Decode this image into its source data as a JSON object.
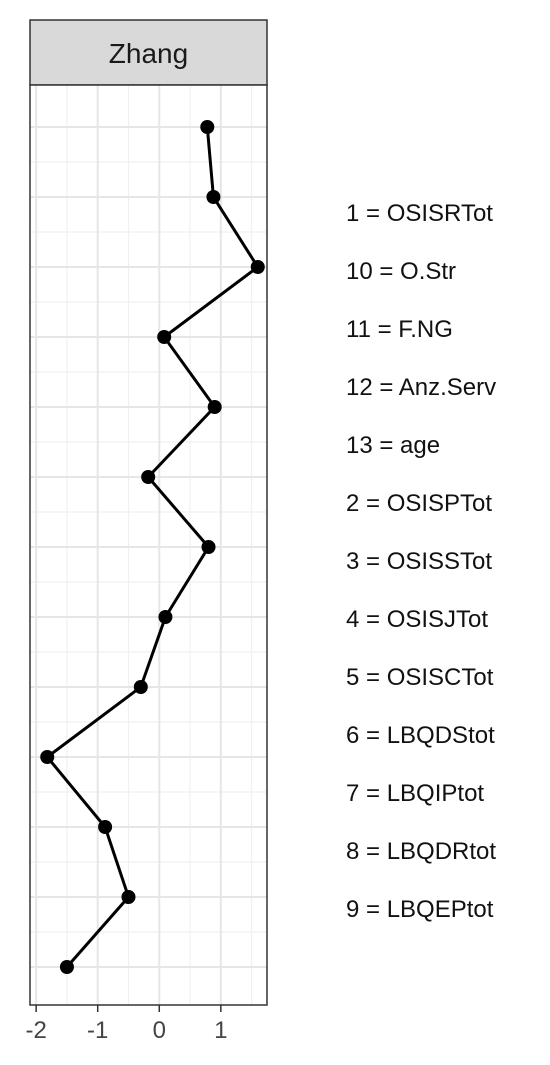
{
  "chart_data": {
    "type": "line",
    "facet_title": "Zhang",
    "x_ticks": [
      -2,
      -1,
      0,
      1
    ],
    "xlim": [
      -2.1,
      1.75
    ],
    "grid": true,
    "y_categories": [
      "1",
      "2",
      "3",
      "4",
      "5",
      "6",
      "7",
      "8",
      "9",
      "10",
      "11",
      "12",
      "13"
    ],
    "series": [
      {
        "points": [
          {
            "y": "1",
            "x": 0.78
          },
          {
            "y": "2",
            "x": 0.88
          },
          {
            "y": "3",
            "x": 1.6
          },
          {
            "y": "4",
            "x": 0.08
          },
          {
            "y": "5",
            "x": 0.9
          },
          {
            "y": "6",
            "x": -0.18
          },
          {
            "y": "7",
            "x": 0.8
          },
          {
            "y": "8",
            "x": 0.1
          },
          {
            "y": "9",
            "x": -0.3
          },
          {
            "y": "10",
            "x": -1.82
          },
          {
            "y": "11",
            "x": -0.88
          },
          {
            "y": "12",
            "x": -0.5
          },
          {
            "y": "13",
            "x": -1.5
          }
        ]
      }
    ],
    "legend": {
      "placement": "right",
      "entries": [
        "1 = OSISRTot",
        "10 = O.Str",
        "11 = F.NG",
        "12 = Anz.Serv",
        "13 = age",
        "2 = OSISPTot",
        "3 = OSISSTot",
        "4 = OSISJTot",
        "5 = OSISCTot",
        "6 = LBQDStot",
        "7 = LBQIPtot",
        "8 = LBQDRtot",
        "9 = LBQEPtot"
      ]
    }
  }
}
